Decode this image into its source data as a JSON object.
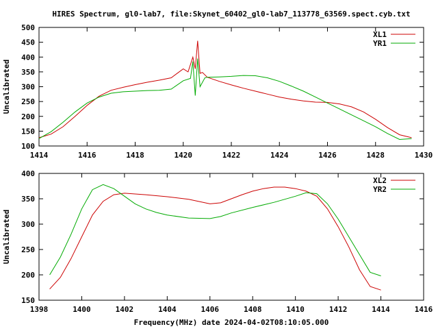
{
  "title": "HIRES Spectrum, gl0-lab7, file:Skynet_60402_gl0-lab7_113778_63569.spect.cyb.txt",
  "xlabel": "Frequency(MHz) date 2024-04-02T08:10:05.000",
  "colors": {
    "red": "#cc0000",
    "green": "#00aa00"
  },
  "chart_data": [
    {
      "type": "line",
      "ylabel": "Uncalibrated",
      "xlim": [
        1414,
        1430
      ],
      "ylim": [
        100,
        500
      ],
      "xticks": [
        "1414",
        "1416",
        "1418",
        "1420",
        "1422",
        "1424",
        "1426",
        "1428",
        "1430"
      ],
      "yticks": [
        "100",
        "150",
        "200",
        "250",
        "300",
        "350",
        "400",
        "450",
        "500"
      ],
      "legend_position": "top-right",
      "series": [
        {
          "name": "XL1",
          "color": "#cc0000",
          "points": [
            [
              1414.0,
              128
            ],
            [
              1414.5,
              140
            ],
            [
              1415.0,
              165
            ],
            [
              1415.5,
              200
            ],
            [
              1416.0,
              237
            ],
            [
              1416.5,
              268
            ],
            [
              1417.0,
              288
            ],
            [
              1417.5,
              298
            ],
            [
              1418.0,
              307
            ],
            [
              1418.5,
              315
            ],
            [
              1419.0,
              322
            ],
            [
              1419.5,
              330
            ],
            [
              1419.8,
              348
            ],
            [
              1420.0,
              360
            ],
            [
              1420.2,
              350
            ],
            [
              1420.4,
              400
            ],
            [
              1420.5,
              360
            ],
            [
              1420.6,
              455
            ],
            [
              1420.7,
              345
            ],
            [
              1420.8,
              348
            ],
            [
              1421.0,
              332
            ],
            [
              1421.5,
              318
            ],
            [
              1422.0,
              306
            ],
            [
              1422.5,
              295
            ],
            [
              1423.0,
              285
            ],
            [
              1423.5,
              275
            ],
            [
              1424.0,
              265
            ],
            [
              1424.5,
              258
            ],
            [
              1425.0,
              252
            ],
            [
              1425.5,
              248
            ],
            [
              1426.0,
              247
            ],
            [
              1426.5,
              242
            ],
            [
              1427.0,
              232
            ],
            [
              1427.5,
              215
            ],
            [
              1428.0,
              190
            ],
            [
              1428.5,
              162
            ],
            [
              1429.0,
              138
            ],
            [
              1429.5,
              128
            ]
          ]
        },
        {
          "name": "YR1",
          "color": "#00aa00",
          "points": [
            [
              1414.0,
              125
            ],
            [
              1414.5,
              148
            ],
            [
              1415.0,
              180
            ],
            [
              1415.5,
              215
            ],
            [
              1416.0,
              245
            ],
            [
              1416.5,
              265
            ],
            [
              1417.0,
              278
            ],
            [
              1417.5,
              283
            ],
            [
              1418.0,
              285
            ],
            [
              1418.5,
              287
            ],
            [
              1419.0,
              288
            ],
            [
              1419.5,
              292
            ],
            [
              1420.0,
              320
            ],
            [
              1420.3,
              328
            ],
            [
              1420.4,
              385
            ],
            [
              1420.5,
              270
            ],
            [
              1420.6,
              395
            ],
            [
              1420.7,
              300
            ],
            [
              1420.9,
              330
            ],
            [
              1421.0,
              332
            ],
            [
              1421.5,
              333
            ],
            [
              1422.0,
              335
            ],
            [
              1422.5,
              338
            ],
            [
              1423.0,
              337
            ],
            [
              1423.5,
              330
            ],
            [
              1424.0,
              318
            ],
            [
              1424.5,
              302
            ],
            [
              1425.0,
              285
            ],
            [
              1425.5,
              265
            ],
            [
              1426.0,
              245
            ],
            [
              1426.5,
              225
            ],
            [
              1427.0,
              205
            ],
            [
              1427.5,
              185
            ],
            [
              1428.0,
              165
            ],
            [
              1428.5,
              142
            ],
            [
              1429.0,
              122
            ],
            [
              1429.5,
              125
            ]
          ]
        }
      ]
    },
    {
      "type": "line",
      "ylabel": "Uncalibrated",
      "xlim": [
        1398,
        1416
      ],
      "ylim": [
        150,
        400
      ],
      "xticks": [
        "1398",
        "1400",
        "1402",
        "1404",
        "1406",
        "1408",
        "1410",
        "1412",
        "1414",
        "1416"
      ],
      "yticks": [
        "150",
        "200",
        "250",
        "300",
        "350",
        "400"
      ],
      "legend_position": "top-right",
      "series": [
        {
          "name": "XL2",
          "color": "#cc0000",
          "points": [
            [
              1398.5,
              172
            ],
            [
              1399.0,
              195
            ],
            [
              1399.5,
              232
            ],
            [
              1400.0,
              275
            ],
            [
              1400.5,
              318
            ],
            [
              1401.0,
              345
            ],
            [
              1401.5,
              358
            ],
            [
              1402.0,
              361
            ],
            [
              1403.0,
              358
            ],
            [
              1404.0,
              354
            ],
            [
              1405.0,
              349
            ],
            [
              1406.0,
              340
            ],
            [
              1406.5,
              342
            ],
            [
              1407.0,
              350
            ],
            [
              1407.5,
              358
            ],
            [
              1408.0,
              365
            ],
            [
              1408.5,
              370
            ],
            [
              1409.0,
              373
            ],
            [
              1409.5,
              373
            ],
            [
              1410.0,
              370
            ],
            [
              1410.5,
              365
            ],
            [
              1411.0,
              355
            ],
            [
              1411.5,
              330
            ],
            [
              1412.0,
              295
            ],
            [
              1412.5,
              255
            ],
            [
              1413.0,
              210
            ],
            [
              1413.5,
              177
            ],
            [
              1414.0,
              170
            ]
          ]
        },
        {
          "name": "YR2",
          "color": "#00aa00",
          "points": [
            [
              1398.5,
              200
            ],
            [
              1399.0,
              235
            ],
            [
              1399.5,
              280
            ],
            [
              1400.0,
              330
            ],
            [
              1400.5,
              368
            ],
            [
              1401.0,
              378
            ],
            [
              1401.5,
              370
            ],
            [
              1402.0,
              355
            ],
            [
              1402.5,
              340
            ],
            [
              1403.0,
              330
            ],
            [
              1403.5,
              323
            ],
            [
              1404.0,
              318
            ],
            [
              1405.0,
              312
            ],
            [
              1406.0,
              311
            ],
            [
              1406.5,
              315
            ],
            [
              1407.0,
              322
            ],
            [
              1408.0,
              333
            ],
            [
              1409.0,
              343
            ],
            [
              1410.0,
              355
            ],
            [
              1410.5,
              362
            ],
            [
              1411.0,
              360
            ],
            [
              1411.5,
              340
            ],
            [
              1412.0,
              310
            ],
            [
              1412.5,
              275
            ],
            [
              1413.0,
              240
            ],
            [
              1413.5,
              205
            ],
            [
              1414.0,
              198
            ]
          ]
        }
      ]
    }
  ]
}
